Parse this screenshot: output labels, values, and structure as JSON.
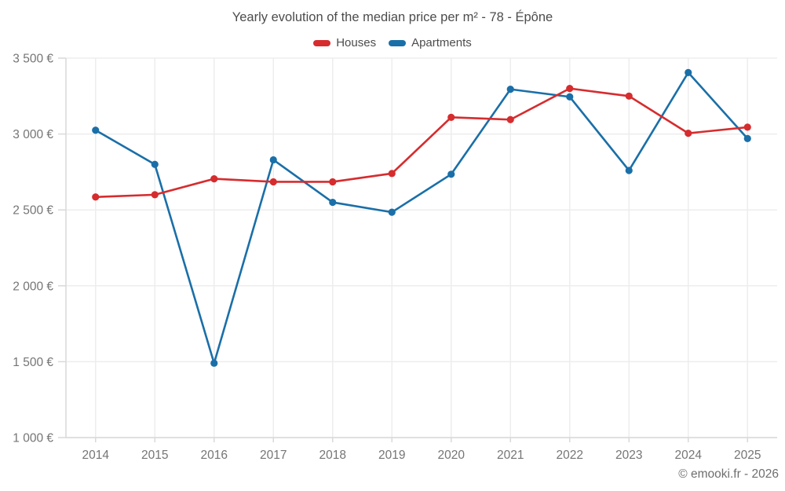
{
  "header": {
    "title": "Yearly evolution of the median price per m² - 78 - Épône"
  },
  "footer": {
    "credit": "© emooki.fr - 2026"
  },
  "style": {
    "grid_color": "#ededed",
    "axis_color": "#d9d9d9",
    "tick_label_color": "#757575",
    "title_color": "#4c4c4c",
    "background": "#ffffff"
  },
  "chart_data": {
    "type": "line",
    "title": "Yearly evolution of the median price per m² - 78 - Épône",
    "categories": [
      "2014",
      "2015",
      "2016",
      "2017",
      "2018",
      "2019",
      "2020",
      "2021",
      "2022",
      "2023",
      "2024",
      "2025"
    ],
    "series": [
      {
        "name": "Houses",
        "color": "#d62c2e",
        "values": [
          2585,
          2600,
          2705,
          2685,
          2685,
          2740,
          3110,
          3095,
          3300,
          3250,
          3005,
          3045
        ]
      },
      {
        "name": "Apartments",
        "color": "#1a6fa8",
        "values": [
          3025,
          2800,
          1490,
          2830,
          2550,
          2485,
          2735,
          3295,
          3245,
          2760,
          3405,
          2970
        ]
      }
    ],
    "ylim": [
      1000,
      3500
    ],
    "y_ticks": [
      {
        "value": 1000,
        "label": "1 000 €"
      },
      {
        "value": 1500,
        "label": "1 500 €"
      },
      {
        "value": 2000,
        "label": "2 000 €"
      },
      {
        "value": 2500,
        "label": "2 500 €"
      },
      {
        "value": 3000,
        "label": "3 000 €"
      },
      {
        "value": 3500,
        "label": "3 500 €"
      }
    ],
    "grid": true,
    "legend_position": "top",
    "xlabel": "",
    "ylabel": "",
    "currency_suffix": " €"
  }
}
